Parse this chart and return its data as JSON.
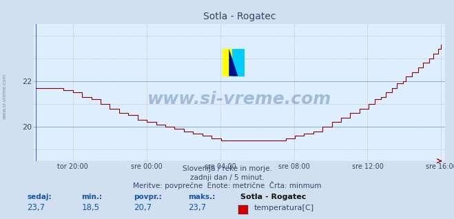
{
  "title": "Sotla - Rogatec",
  "bg_color": "#d0e0f0",
  "plot_bg_color": "#ddeeff",
  "line_color": "#880000",
  "ylim": [
    18.5,
    24.5
  ],
  "yticks": [
    20,
    22
  ],
  "xlabel_ticks": [
    "tor 20:00",
    "sre 00:00",
    "sre 04:00",
    "sre 08:00",
    "sre 12:00",
    "sre 16:00"
  ],
  "xtick_positions": [
    2,
    6,
    10,
    14,
    18,
    22
  ],
  "subtitle1": "Slovenija / reke in morje.",
  "subtitle2": "zadnji dan / 5 minut.",
  "subtitle3": "Meritve: povprečne  Enote: metrične  Črta: minmum",
  "label_sedaj": "sedaj:",
  "label_min": "min.:",
  "label_povpr": "povpr.:",
  "label_maks": "maks.:",
  "val_sedaj": "23,7",
  "val_min": "18,5",
  "val_povpr": "20,7",
  "val_maks": "23,7",
  "station_name": "Sotla - Rogatec",
  "legend_label": "temperatura[C]",
  "legend_color": "#cc0000",
  "watermark": "www.si-vreme.com",
  "watermark_color": "#1a4488",
  "sidebar_text": "www.si-vreme.com"
}
